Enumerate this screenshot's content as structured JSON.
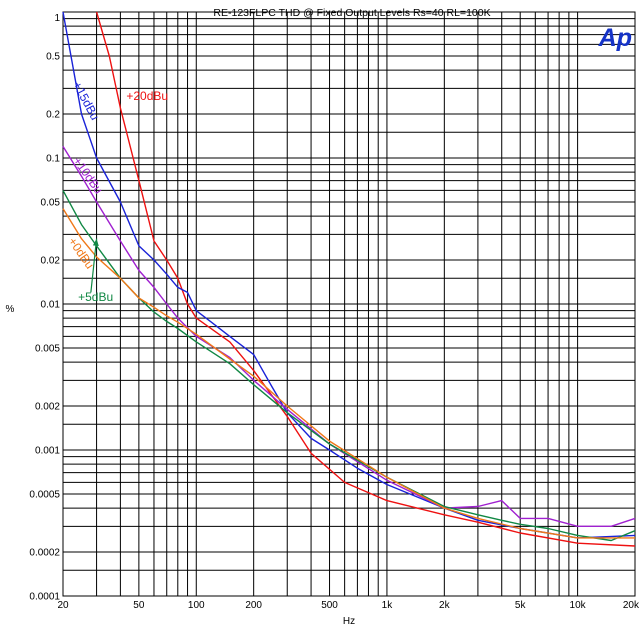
{
  "chart_data": {
    "type": "line",
    "title": "RE-123FLPC  THD @ Fixed Output Levels  Rs=40 RL=100K",
    "logo": "Ap",
    "xlabel": "Hz",
    "ylabel": "%",
    "x_scale": "log",
    "y_scale": "log",
    "xlim": [
      20,
      20000
    ],
    "ylim": [
      0.0001,
      1
    ],
    "grid": true,
    "x_tick_labels": [
      {
        "v": 20,
        "t": "20"
      },
      {
        "v": 50,
        "t": "50"
      },
      {
        "v": 100,
        "t": "100"
      },
      {
        "v": 200,
        "t": "200"
      },
      {
        "v": 500,
        "t": "500"
      },
      {
        "v": 1000,
        "t": "1k"
      },
      {
        "v": 2000,
        "t": "2k"
      },
      {
        "v": 5000,
        "t": "5k"
      },
      {
        "v": 10000,
        "t": "10k"
      },
      {
        "v": 20000,
        "t": "20k"
      }
    ],
    "y_tick_labels": [
      {
        "v": 1,
        "t": "1"
      },
      {
        "v": 0.5,
        "t": "0.5"
      },
      {
        "v": 0.2,
        "t": "0.2"
      },
      {
        "v": 0.1,
        "t": "0.1"
      },
      {
        "v": 0.05,
        "t": "0.05"
      },
      {
        "v": 0.02,
        "t": "0.02"
      },
      {
        "v": 0.01,
        "t": "0.01"
      },
      {
        "v": 0.005,
        "t": "0.005"
      },
      {
        "v": 0.002,
        "t": "0.002"
      },
      {
        "v": 0.001,
        "t": "0.001"
      },
      {
        "v": 0.0005,
        "t": "0.0005"
      },
      {
        "v": 0.0002,
        "t": "0.0002"
      },
      {
        "v": 0.0001,
        "t": "0.0001"
      }
    ],
    "series": [
      {
        "name": "+20dBu",
        "color": "#ee1111",
        "x": [
          30,
          35,
          40,
          50,
          60,
          70,
          80,
          90,
          100,
          150,
          200,
          300,
          400,
          600,
          1000,
          2000,
          3000,
          5000,
          10000,
          20000
        ],
        "y": [
          1.0,
          0.5,
          0.22,
          0.07,
          0.027,
          0.02,
          0.015,
          0.01,
          0.008,
          0.0055,
          0.0035,
          0.0017,
          0.00095,
          0.0006,
          0.00045,
          0.00036,
          0.00032,
          0.00027,
          0.00023,
          0.00022
        ]
      },
      {
        "name": "+15dBu",
        "color": "#1a23d8",
        "x": [
          20,
          25,
          30,
          40,
          50,
          60,
          70,
          80,
          90,
          100,
          120,
          150,
          200,
          250,
          300,
          400,
          500,
          700,
          1000,
          2000,
          3000,
          5000,
          10000,
          20000
        ],
        "y": [
          1.0,
          0.2,
          0.1,
          0.05,
          0.025,
          0.02,
          0.016,
          0.013,
          0.012,
          0.009,
          0.0075,
          0.006,
          0.0045,
          0.0027,
          0.0018,
          0.0012,
          0.001,
          0.00075,
          0.00058,
          0.0004,
          0.00033,
          0.00029,
          0.00025,
          0.00026
        ]
      },
      {
        "name": "+10dBu",
        "color": "#a020d0",
        "x": [
          20,
          25,
          30,
          40,
          50,
          60,
          70,
          80,
          100,
          150,
          200,
          300,
          500,
          1000,
          2000,
          3000,
          4000,
          5000,
          7000,
          10000,
          15000,
          20000
        ],
        "y": [
          0.12,
          0.075,
          0.05,
          0.027,
          0.017,
          0.013,
          0.01,
          0.008,
          0.006,
          0.0043,
          0.003,
          0.0019,
          0.0011,
          0.00062,
          0.0004,
          0.00041,
          0.00045,
          0.00034,
          0.00034,
          0.0003,
          0.0003,
          0.00034
        ]
      },
      {
        "name": "+5dBu",
        "color": "#118844",
        "x": [
          20,
          25,
          30,
          40,
          50,
          60,
          70,
          80,
          100,
          150,
          200,
          300,
          500,
          1000,
          2000,
          3000,
          4000,
          5000,
          7000,
          10000,
          15000,
          20000
        ],
        "y": [
          0.06,
          0.035,
          0.025,
          0.015,
          0.011,
          0.0088,
          0.0076,
          0.0068,
          0.0055,
          0.0039,
          0.0028,
          0.0018,
          0.0011,
          0.00065,
          0.00041,
          0.00036,
          0.00033,
          0.00031,
          0.00029,
          0.00026,
          0.00024,
          0.00028
        ]
      },
      {
        "name": "+0dBu",
        "color": "#f07818",
        "x": [
          20,
          25,
          30,
          40,
          50,
          60,
          70,
          80,
          100,
          150,
          200,
          300,
          500,
          1000,
          2000,
          3000,
          5000,
          10000,
          20000
        ],
        "y": [
          0.045,
          0.028,
          0.021,
          0.015,
          0.011,
          0.0095,
          0.0083,
          0.0075,
          0.0062,
          0.0042,
          0.0032,
          0.002,
          0.00115,
          0.00065,
          0.0004,
          0.00034,
          0.00029,
          0.00025,
          0.00025
        ]
      }
    ],
    "annotations": [
      {
        "text": "+20dBu",
        "color": "#ee1111",
        "x": 43,
        "y": 0.25,
        "rotate": 0
      },
      {
        "text": "+15dBu",
        "color": "#1a23d8",
        "x": 22.5,
        "y": 0.32,
        "rotate": 62
      },
      {
        "text": "+10dBu",
        "color": "#a020d0",
        "x": 22.5,
        "y": 0.096,
        "rotate": 55
      },
      {
        "text": "+0dBu",
        "color": "#f07818",
        "x": 21.2,
        "y": 0.027,
        "rotate": 55
      },
      {
        "text": "+5dBu",
        "color": "#118844",
        "x": 24,
        "y": 0.0105,
        "rotate": 0
      }
    ],
    "arrow": {
      "color": "#118844",
      "from": [
        28,
        0.012
      ],
      "to": [
        30,
        0.028
      ]
    }
  }
}
